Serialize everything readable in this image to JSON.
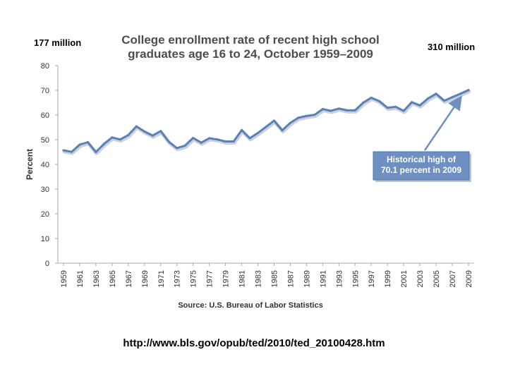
{
  "slide": {
    "left_note": "177 million",
    "right_note": "310 million",
    "url": "http://www.bls.gov/opub/ted/2010/ted_20100428.htm"
  },
  "chart_data": {
    "type": "line",
    "title_lines": [
      "College enrollment rate of recent high school",
      "graduates age 16 to 24, October 1959–2009"
    ],
    "ylabel": "Percent",
    "xlabel": "",
    "source": "Source: U.S. Bureau of Labor Statistics",
    "ylim": [
      0,
      80
    ],
    "yticks": [
      0,
      10,
      20,
      30,
      40,
      50,
      60,
      70,
      80
    ],
    "xtick_labels": [
      "1959",
      "1961",
      "1963",
      "1965",
      "1967",
      "1969",
      "1971",
      "1973",
      "1975",
      "1977",
      "1979",
      "1981",
      "1983",
      "1985",
      "1987",
      "1989",
      "1991",
      "1993",
      "1995",
      "1997",
      "1999",
      "2001",
      "2003",
      "2005",
      "2007",
      "2009"
    ],
    "grid": false,
    "line_color": "#5b80b2",
    "series": [
      {
        "x": [
          1959,
          1960,
          1961,
          1962,
          1963,
          1964,
          1965,
          1966,
          1967,
          1968,
          1969,
          1970,
          1971,
          1972,
          1973,
          1974,
          1975,
          1976,
          1977,
          1978,
          1979,
          1980,
          1981,
          1982,
          1983,
          1984,
          1985,
          1986,
          1987,
          1988,
          1989,
          1990,
          1991,
          1992,
          1993,
          1994,
          1995,
          1996,
          1997,
          1998,
          1999,
          2000,
          2001,
          2002,
          2003,
          2004,
          2005,
          2006,
          2007,
          2008,
          2009
        ],
        "values": [
          45.7,
          45.1,
          48.0,
          49.0,
          45.0,
          48.3,
          50.9,
          50.1,
          51.9,
          55.4,
          53.3,
          51.7,
          53.5,
          49.2,
          46.6,
          47.6,
          50.7,
          48.8,
          50.6,
          50.1,
          49.3,
          49.3,
          53.9,
          50.6,
          52.7,
          55.2,
          57.7,
          53.8,
          56.8,
          58.9,
          59.6,
          60.1,
          62.4,
          61.7,
          62.6,
          61.9,
          61.9,
          65.0,
          67.0,
          65.6,
          62.9,
          63.3,
          61.7,
          65.2,
          63.9,
          66.7,
          68.6,
          65.8,
          67.2,
          68.6,
          70.1
        ]
      }
    ],
    "annotation": {
      "lines": [
        "Historical high of",
        "70.1 percent in 2009"
      ],
      "points_to_x": 2009,
      "points_to_y": 70.1
    }
  }
}
